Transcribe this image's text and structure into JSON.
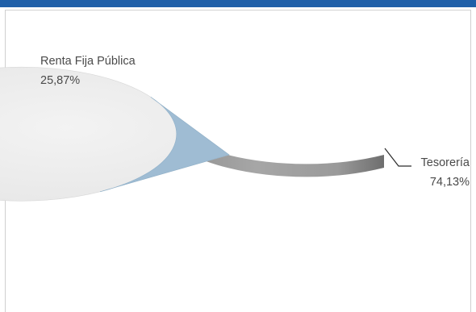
{
  "chart_data": {
    "type": "pie",
    "title": "",
    "categories": [
      "Renta Fija Pública",
      "Tesorería"
    ],
    "values": [
      25.87,
      74.13
    ],
    "value_labels": [
      "25,87%",
      "74,13%"
    ],
    "colors": [
      "#9fbcd3",
      "#ececec"
    ],
    "grid": false,
    "legend": "none",
    "style": "3d"
  },
  "colors": {
    "top_bar": "#1f5fa8",
    "panel_border": "#d0d0d0"
  }
}
